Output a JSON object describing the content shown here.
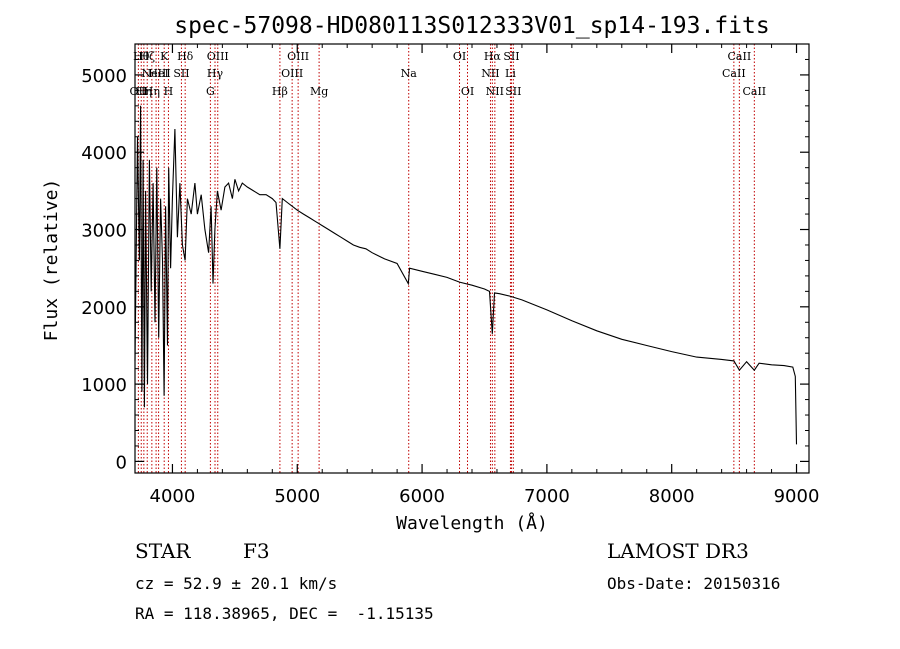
{
  "chart_data": {
    "type": "line",
    "title": "spec-57098-HD080113S012333V01_sp14-193.fits",
    "xlabel": "Wavelength (Å)",
    "ylabel": "Flux (relative)",
    "xlim": [
      3700,
      9100
    ],
    "ylim": [
      -150,
      5400
    ],
    "x_ticks": [
      4000,
      5000,
      6000,
      7000,
      8000,
      9000
    ],
    "x_tick_labels": [
      "4000",
      "5000",
      "6000",
      "7000",
      "8000",
      "9000"
    ],
    "y_ticks": [
      0,
      1000,
      2000,
      3000,
      4000,
      5000
    ],
    "y_tick_labels": [
      "0",
      "1000",
      "2000",
      "3000",
      "4000",
      "5000"
    ],
    "series": [
      {
        "name": "flux",
        "x": [
          3700,
          3720,
          3735,
          3745,
          3755,
          3765,
          3775,
          3785,
          3800,
          3815,
          3830,
          3845,
          3860,
          3875,
          3890,
          3905,
          3920,
          3933,
          3945,
          3960,
          3970,
          3985,
          4000,
          4020,
          4040,
          4060,
          4080,
          4101,
          4120,
          4150,
          4180,
          4200,
          4230,
          4260,
          4290,
          4310,
          4325,
          4340,
          4360,
          4390,
          4420,
          4450,
          4480,
          4500,
          4530,
          4560,
          4600,
          4650,
          4700,
          4750,
          4800,
          4830,
          4861,
          4880,
          4920,
          4960,
          5000,
          5050,
          5100,
          5150,
          5200,
          5250,
          5300,
          5350,
          5400,
          5450,
          5500,
          5550,
          5600,
          5700,
          5800,
          5890,
          5900,
          6000,
          6100,
          6200,
          6300,
          6400,
          6500,
          6540,
          6563,
          6580,
          6620,
          6700,
          6800,
          7000,
          7200,
          7400,
          7600,
          7800,
          8000,
          8200,
          8400,
          8498,
          8542,
          8600,
          8662,
          8700,
          8800,
          8900,
          8970,
          8990,
          9000
        ],
        "values": [
          1300,
          4200,
          2600,
          4600,
          900,
          3900,
          700,
          3500,
          1000,
          3900,
          2200,
          3600,
          1800,
          3800,
          1600,
          3400,
          2600,
          850,
          3300,
          1500,
          3800,
          2500,
          3400,
          4300,
          2900,
          3600,
          2800,
          2600,
          3400,
          3200,
          3600,
          3200,
          3450,
          3000,
          2700,
          3300,
          2300,
          3000,
          3500,
          3250,
          3550,
          3600,
          3400,
          3650,
          3500,
          3600,
          3550,
          3500,
          3450,
          3450,
          3400,
          3350,
          2750,
          3400,
          3350,
          3300,
          3250,
          3200,
          3150,
          3100,
          3050,
          3000,
          2950,
          2900,
          2850,
          2800,
          2770,
          2750,
          2700,
          2620,
          2560,
          2300,
          2500,
          2460,
          2420,
          2380,
          2320,
          2280,
          2230,
          2200,
          1650,
          2180,
          2170,
          2140,
          2090,
          1960,
          1820,
          1690,
          1580,
          1500,
          1420,
          1350,
          1320,
          1300,
          1180,
          1290,
          1180,
          1270,
          1250,
          1240,
          1220,
          1100,
          220
        ]
      }
    ],
    "lines": [
      {
        "wl": 3727,
        "label": "OII",
        "row": 3
      },
      {
        "wl": 3750,
        "label": "Hθ",
        "row": 1
      },
      {
        "wl": 3771,
        "label": "Hη",
        "row": 3
      },
      {
        "wl": 3798,
        "label": "Hζ",
        "row": 1
      },
      {
        "wl": 3835,
        "label": "Hη",
        "row": 3
      },
      {
        "wl": 3869,
        "label": "NeIII",
        "row": 2
      },
      {
        "wl": 3889,
        "label": "HeI",
        "row": 2
      },
      {
        "wl": 3934,
        "label": "K",
        "row": 1
      },
      {
        "wl": 3968,
        "label": "H",
        "row": 3
      },
      {
        "wl": 4072,
        "label": "SII",
        "row": 2
      },
      {
        "wl": 4102,
        "label": "Hδ",
        "row": 1
      },
      {
        "wl": 4304,
        "label": "G",
        "row": 3
      },
      {
        "wl": 4341,
        "label": "Hγ",
        "row": 2
      },
      {
        "wl": 4363,
        "label": "OIII",
        "row": 1
      },
      {
        "wl": 4861,
        "label": "Hβ",
        "row": 3
      },
      {
        "wl": 4959,
        "label": "OIII",
        "row": 2
      },
      {
        "wl": 5007,
        "label": "OIII",
        "row": 1
      },
      {
        "wl": 5175,
        "label": "Mg",
        "row": 3
      },
      {
        "wl": 5893,
        "label": "Na",
        "row": 2
      },
      {
        "wl": 6300,
        "label": "OI",
        "row": 1
      },
      {
        "wl": 6364,
        "label": "OI",
        "row": 3
      },
      {
        "wl": 6548,
        "label": "NII",
        "row": 2
      },
      {
        "wl": 6563,
        "label": "Hα",
        "row": 1
      },
      {
        "wl": 6583,
        "label": "NII",
        "row": 3
      },
      {
        "wl": 6708,
        "label": "Li",
        "row": 2
      },
      {
        "wl": 6716,
        "label": "SII",
        "row": 1
      },
      {
        "wl": 6731,
        "label": "SII",
        "row": 3
      },
      {
        "wl": 8498,
        "label": "CaII",
        "row": 2
      },
      {
        "wl": 8542,
        "label": "CaII",
        "row": 1
      },
      {
        "wl": 8662,
        "label": "CaII",
        "row": 3
      }
    ]
  },
  "footer": {
    "object_type": "STAR",
    "subclass": "F3",
    "survey": "LAMOST DR3",
    "cz": "cz = 52.9 ± 20.1 km/s",
    "obs_date": "Obs-Date: 20150316",
    "coords": "RA = 118.38965, DEC =  -1.15135"
  }
}
